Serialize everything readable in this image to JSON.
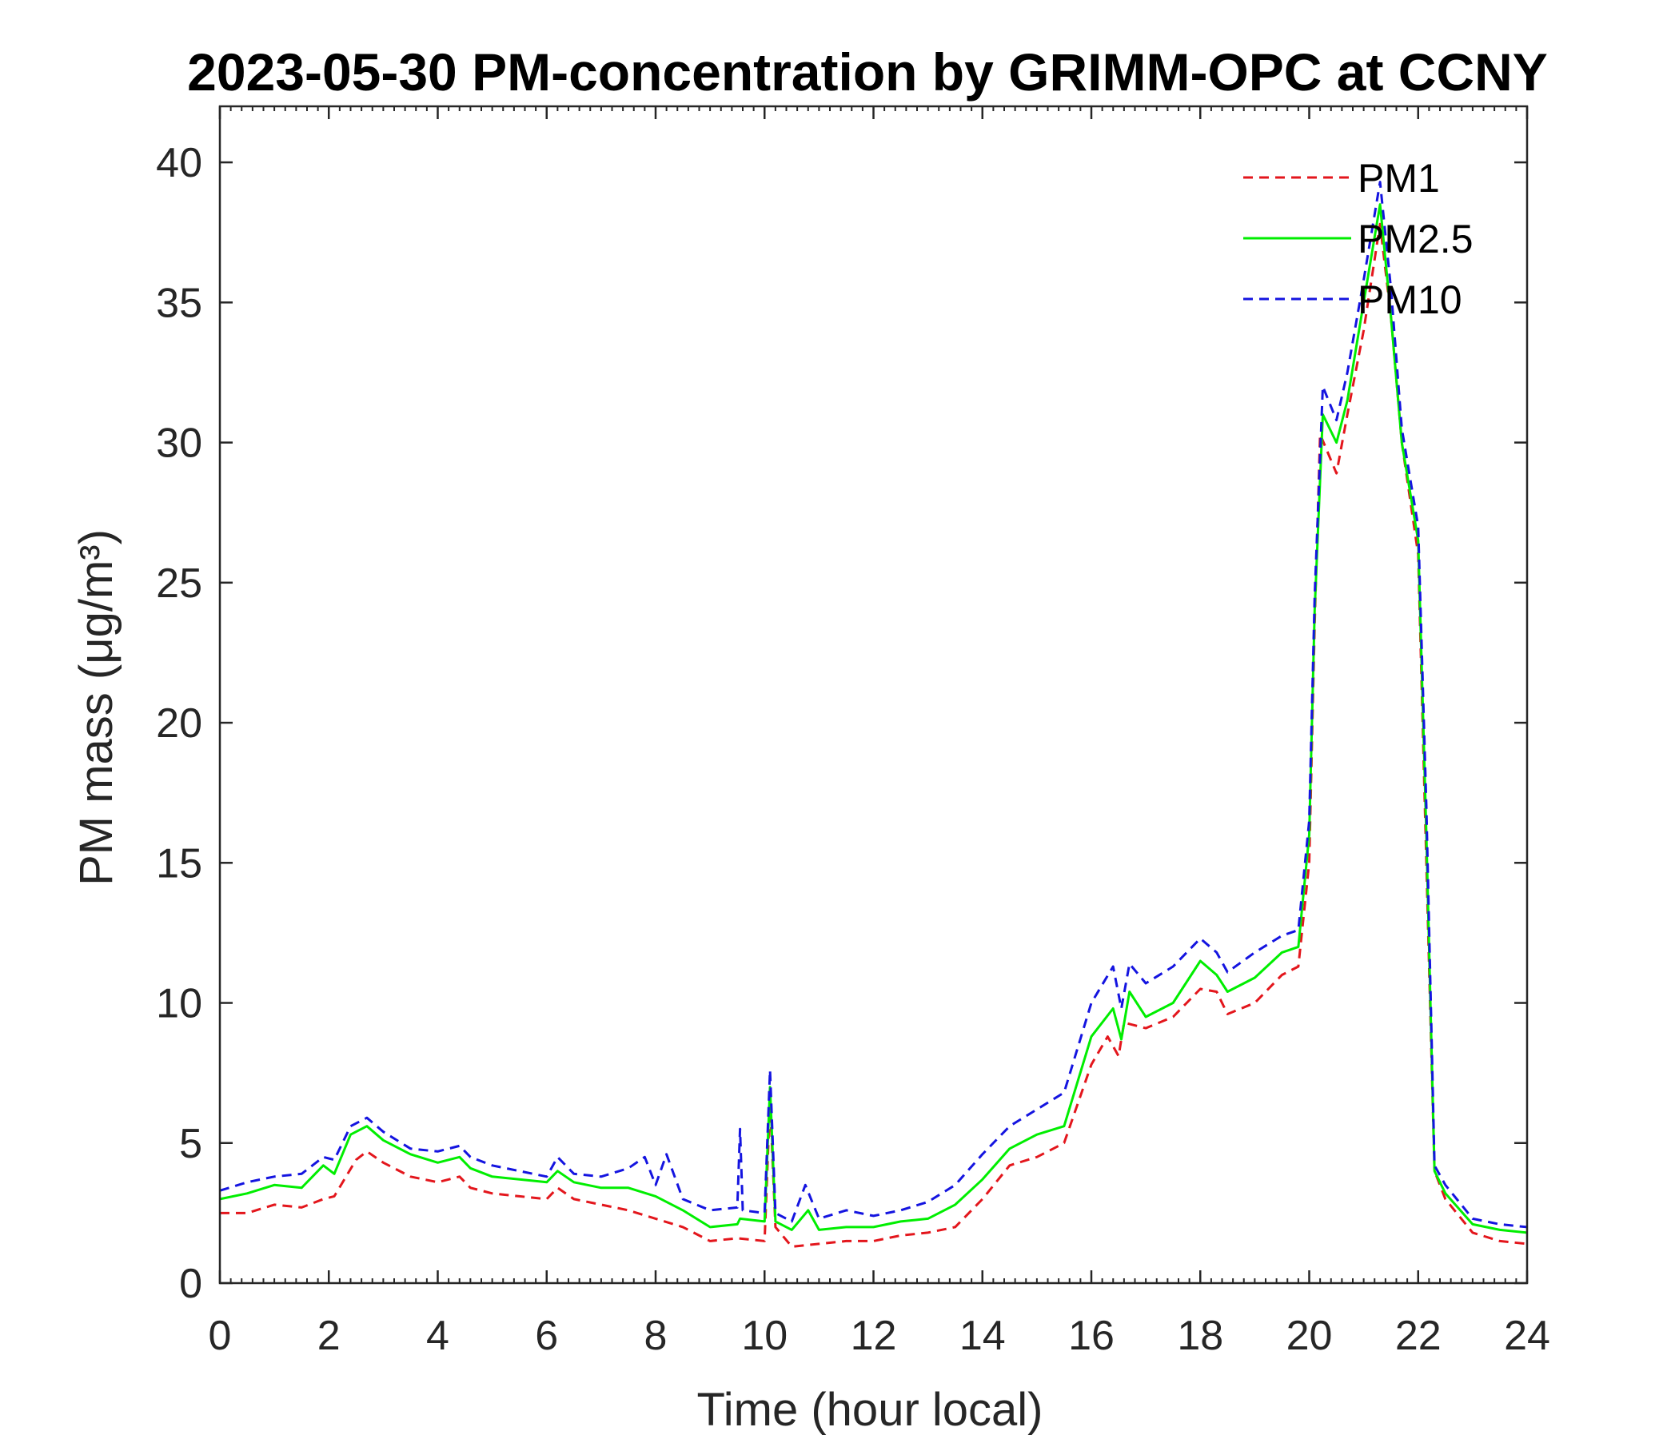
{
  "chart_data": {
    "type": "line",
    "title": "2023-05-30 PM-concentration by GRIMM-OPC at CCNY",
    "xlabel": "Time (hour local)",
    "ylabel": "PM mass (μg/m³)",
    "xlim": [
      0,
      24
    ],
    "ylim": [
      0,
      42
    ],
    "xticks": [
      0,
      2,
      4,
      6,
      8,
      10,
      12,
      14,
      16,
      18,
      20,
      22,
      24
    ],
    "yticks": [
      0,
      5,
      10,
      15,
      20,
      25,
      30,
      35,
      40
    ],
    "grid": false,
    "legend_position": "top-right",
    "series": [
      {
        "name": "PM1",
        "color": "#e3161c",
        "dash": "dashed",
        "points": [
          [
            0,
            2.5
          ],
          [
            0.5,
            2.5
          ],
          [
            1,
            2.8
          ],
          [
            1.5,
            2.7
          ],
          [
            1.9,
            3.0
          ],
          [
            2.1,
            3.1
          ],
          [
            2.5,
            4.4
          ],
          [
            2.7,
            4.7
          ],
          [
            3,
            4.3
          ],
          [
            3.5,
            3.8
          ],
          [
            4,
            3.6
          ],
          [
            4.4,
            3.8
          ],
          [
            4.6,
            3.4
          ],
          [
            5,
            3.2
          ],
          [
            5.5,
            3.1
          ],
          [
            6,
            3.0
          ],
          [
            6.2,
            3.4
          ],
          [
            6.5,
            3.0
          ],
          [
            7,
            2.8
          ],
          [
            7.5,
            2.6
          ],
          [
            8,
            2.3
          ],
          [
            8.5,
            2.0
          ],
          [
            9,
            1.5
          ],
          [
            9.5,
            1.6
          ],
          [
            10,
            1.5
          ],
          [
            10.1,
            6.5
          ],
          [
            10.2,
            2.0
          ],
          [
            10.5,
            1.3
          ],
          [
            11,
            1.4
          ],
          [
            11.5,
            1.5
          ],
          [
            12,
            1.5
          ],
          [
            12.5,
            1.7
          ],
          [
            13,
            1.8
          ],
          [
            13.5,
            2.0
          ],
          [
            14,
            3.0
          ],
          [
            14.5,
            4.2
          ],
          [
            15,
            4.5
          ],
          [
            15.5,
            5.0
          ],
          [
            16,
            7.8
          ],
          [
            16.3,
            8.8
          ],
          [
            16.5,
            8.1
          ],
          [
            16.6,
            9.3
          ],
          [
            17,
            9.1
          ],
          [
            17.5,
            9.5
          ],
          [
            18,
            10.5
          ],
          [
            18.3,
            10.4
          ],
          [
            18.5,
            9.6
          ],
          [
            19,
            10.0
          ],
          [
            19.5,
            11.0
          ],
          [
            19.8,
            11.3
          ],
          [
            20,
            15.0
          ],
          [
            20.1,
            23.5
          ],
          [
            20.2,
            30.3
          ],
          [
            20.5,
            28.9
          ],
          [
            20.7,
            31.0
          ],
          [
            21,
            34.0
          ],
          [
            21.3,
            37.8
          ],
          [
            21.5,
            34.5
          ],
          [
            21.7,
            30.0
          ],
          [
            22,
            26.0
          ],
          [
            22.15,
            15.0
          ],
          [
            22.3,
            4.0
          ],
          [
            22.5,
            3.0
          ],
          [
            23,
            1.8
          ],
          [
            23.5,
            1.5
          ],
          [
            24,
            1.4
          ]
        ]
      },
      {
        "name": "PM2.5",
        "color": "#00ee00",
        "dash": "solid",
        "points": [
          [
            0,
            3.0
          ],
          [
            0.5,
            3.2
          ],
          [
            1,
            3.5
          ],
          [
            1.5,
            3.4
          ],
          [
            1.9,
            4.2
          ],
          [
            2.1,
            3.9
          ],
          [
            2.4,
            5.3
          ],
          [
            2.7,
            5.6
          ],
          [
            3,
            5.1
          ],
          [
            3.5,
            4.6
          ],
          [
            4,
            4.3
          ],
          [
            4.4,
            4.5
          ],
          [
            4.6,
            4.1
          ],
          [
            5,
            3.8
          ],
          [
            5.5,
            3.7
          ],
          [
            6,
            3.6
          ],
          [
            6.2,
            4.0
          ],
          [
            6.5,
            3.6
          ],
          [
            7,
            3.4
          ],
          [
            7.5,
            3.4
          ],
          [
            8,
            3.1
          ],
          [
            8.5,
            2.6
          ],
          [
            9,
            2.0
          ],
          [
            9.5,
            2.1
          ],
          [
            9.55,
            2.3
          ],
          [
            10,
            2.2
          ],
          [
            10.1,
            7.0
          ],
          [
            10.2,
            2.2
          ],
          [
            10.5,
            1.9
          ],
          [
            10.8,
            2.6
          ],
          [
            11,
            1.9
          ],
          [
            11.5,
            2.0
          ],
          [
            12,
            2.0
          ],
          [
            12.5,
            2.2
          ],
          [
            13,
            2.3
          ],
          [
            13.5,
            2.8
          ],
          [
            14,
            3.7
          ],
          [
            14.5,
            4.8
          ],
          [
            15,
            5.3
          ],
          [
            15.5,
            5.6
          ],
          [
            16,
            8.8
          ],
          [
            16.4,
            9.8
          ],
          [
            16.55,
            8.7
          ],
          [
            16.7,
            10.4
          ],
          [
            17,
            9.5
          ],
          [
            17.5,
            10.0
          ],
          [
            18,
            11.5
          ],
          [
            18.3,
            11.0
          ],
          [
            18.5,
            10.4
          ],
          [
            19,
            10.9
          ],
          [
            19.5,
            11.8
          ],
          [
            19.8,
            12.0
          ],
          [
            20,
            16.0
          ],
          [
            20.1,
            24.0
          ],
          [
            20.25,
            31.0
          ],
          [
            20.5,
            30.0
          ],
          [
            20.7,
            31.5
          ],
          [
            21,
            35.0
          ],
          [
            21.3,
            38.5
          ],
          [
            21.5,
            34.5
          ],
          [
            21.7,
            30.0
          ],
          [
            22,
            26.5
          ],
          [
            22.15,
            16.0
          ],
          [
            22.3,
            4.0
          ],
          [
            22.5,
            3.2
          ],
          [
            23,
            2.1
          ],
          [
            23.5,
            1.9
          ],
          [
            24,
            1.8
          ]
        ]
      },
      {
        "name": "PM10",
        "color": "#1414e0",
        "dash": "dashed",
        "points": [
          [
            0,
            3.3
          ],
          [
            0.5,
            3.6
          ],
          [
            1,
            3.8
          ],
          [
            1.5,
            3.9
          ],
          [
            1.9,
            4.5
          ],
          [
            2.1,
            4.4
          ],
          [
            2.4,
            5.6
          ],
          [
            2.7,
            5.9
          ],
          [
            3,
            5.4
          ],
          [
            3.5,
            4.8
          ],
          [
            4,
            4.7
          ],
          [
            4.4,
            4.9
          ],
          [
            4.6,
            4.5
          ],
          [
            5,
            4.2
          ],
          [
            5.5,
            4.0
          ],
          [
            6,
            3.8
          ],
          [
            6.2,
            4.5
          ],
          [
            6.5,
            3.9
          ],
          [
            7,
            3.8
          ],
          [
            7.5,
            4.1
          ],
          [
            7.8,
            4.5
          ],
          [
            8,
            3.5
          ],
          [
            8.2,
            4.6
          ],
          [
            8.5,
            3.0
          ],
          [
            9,
            2.6
          ],
          [
            9.5,
            2.7
          ],
          [
            9.55,
            5.5
          ],
          [
            9.6,
            2.6
          ],
          [
            10,
            2.5
          ],
          [
            10.1,
            7.6
          ],
          [
            10.2,
            2.5
          ],
          [
            10.5,
            2.2
          ],
          [
            10.75,
            3.5
          ],
          [
            11,
            2.3
          ],
          [
            11.5,
            2.6
          ],
          [
            12,
            2.4
          ],
          [
            12.5,
            2.6
          ],
          [
            13,
            2.9
          ],
          [
            13.5,
            3.5
          ],
          [
            14,
            4.6
          ],
          [
            14.5,
            5.6
          ],
          [
            15,
            6.2
          ],
          [
            15.5,
            6.8
          ],
          [
            16,
            10.0
          ],
          [
            16.4,
            11.3
          ],
          [
            16.55,
            9.8
          ],
          [
            16.7,
            11.4
          ],
          [
            17,
            10.7
          ],
          [
            17.5,
            11.3
          ],
          [
            18,
            12.3
          ],
          [
            18.3,
            11.8
          ],
          [
            18.5,
            11.1
          ],
          [
            19,
            11.8
          ],
          [
            19.5,
            12.4
          ],
          [
            19.8,
            12.6
          ],
          [
            20,
            16.5
          ],
          [
            20.1,
            24.5
          ],
          [
            20.25,
            32.0
          ],
          [
            20.5,
            30.8
          ],
          [
            20.7,
            32.5
          ],
          [
            21,
            35.8
          ],
          [
            21.3,
            39.3
          ],
          [
            21.5,
            35.5
          ],
          [
            21.7,
            30.5
          ],
          [
            22,
            27.0
          ],
          [
            22.15,
            17.0
          ],
          [
            22.3,
            4.2
          ],
          [
            22.5,
            3.5
          ],
          [
            23,
            2.3
          ],
          [
            23.5,
            2.1
          ],
          [
            24,
            2.0
          ]
        ]
      }
    ]
  }
}
